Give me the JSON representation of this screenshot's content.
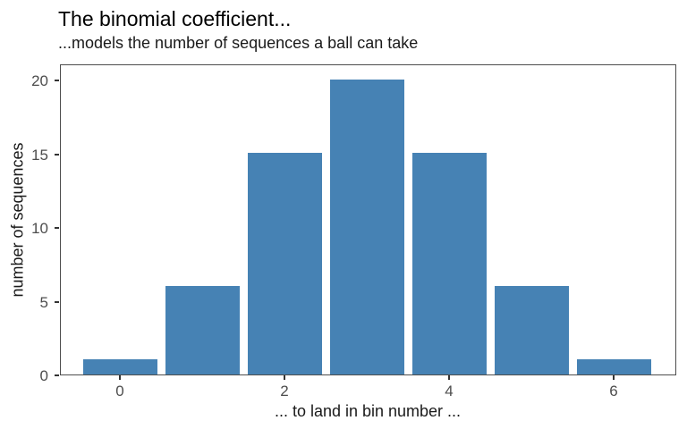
{
  "chart_data": {
    "type": "bar",
    "title": "The binomial coefficient...",
    "subtitle": "...models the number of sequences a ball can take",
    "xlabel": "... to land in bin number ...",
    "ylabel": "number of sequences",
    "categories": [
      0,
      1,
      2,
      3,
      4,
      5,
      6
    ],
    "values": [
      1,
      6,
      15,
      20,
      15,
      6,
      1
    ],
    "x_tick_values": [
      0,
      2,
      4,
      6
    ],
    "y_tick_values": [
      0,
      5,
      10,
      15,
      20
    ],
    "ylim": [
      0,
      21.1
    ],
    "grid": false,
    "legend": "none",
    "colors": {
      "bar_fill": "#4682B4",
      "panel_border": "#4d4d4d",
      "tick_mark": "#333333",
      "axis_text": "#4d4d4d",
      "title_text": "#000000"
    }
  }
}
